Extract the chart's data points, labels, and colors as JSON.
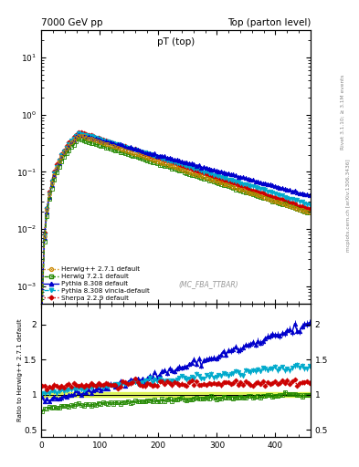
{
  "title_left": "7000 GeV pp",
  "title_right": "Top (parton level)",
  "plot_title": "pT (top)",
  "ylabel_ratio": "Ratio to Herwig++ 2.7.1 default",
  "right_label": "mcplots.cern.ch [arXiv:1306.3436]",
  "right_label2": "Rivet 3.1.10; ≥ 3.1M events",
  "watermark": "(MC_FBA_TTBAR)",
  "xlim": [
    0,
    460
  ],
  "ylim_main": [
    0.0005,
    30
  ],
  "ylim_ratio": [
    0.4,
    2.3
  ],
  "ratio_yticks": [
    0.5,
    1.0,
    1.5,
    2.0
  ],
  "series": [
    {
      "label": "Herwig++ 2.7.1 default",
      "color": "#cc8800",
      "linestyle": "dotted",
      "marker": "o",
      "markerfacecolor": "none",
      "linewidth": 1.0,
      "markersize": 2.8,
      "is_reference": true
    },
    {
      "label": "Herwig 7.2.1 default",
      "color": "#228800",
      "linestyle": "dashed",
      "marker": "s",
      "markerfacecolor": "none",
      "linewidth": 1.0,
      "markersize": 2.8,
      "is_reference": false
    },
    {
      "label": "Pythia 8.308 default",
      "color": "#0000cc",
      "linestyle": "solid",
      "marker": "^",
      "markerfacecolor": "#0000cc",
      "linewidth": 1.0,
      "markersize": 3.2,
      "is_reference": false
    },
    {
      "label": "Pythia 8.308 vincia-default",
      "color": "#00aacc",
      "linestyle": "dashed",
      "marker": "v",
      "markerfacecolor": "#00aacc",
      "linewidth": 1.0,
      "markersize": 3.2,
      "is_reference": false
    },
    {
      "label": "Sherpa 2.2.9 default",
      "color": "#cc0000",
      "linestyle": "dotted",
      "marker": "D",
      "markerfacecolor": "#cc0000",
      "linewidth": 1.0,
      "markersize": 2.5,
      "is_reference": false
    }
  ],
  "band_color": "#ccee00",
  "band_alpha": 0.6,
  "background_color": "#ffffff"
}
